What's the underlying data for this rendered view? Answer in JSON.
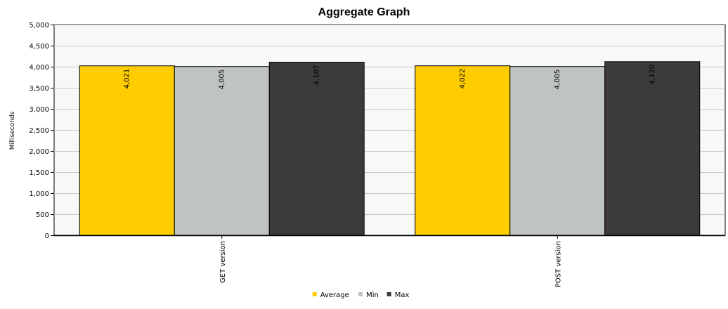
{
  "chart_data": {
    "type": "bar",
    "title": "Aggregate Graph",
    "xlabel": "",
    "ylabel": "Milliseconds",
    "categories": [
      "GET version",
      "POST version"
    ],
    "series": [
      {
        "name": "Average",
        "values": [
          4021,
          4022
        ],
        "labels": [
          "4,021",
          "4,022"
        ],
        "color": "#ffcc00"
      },
      {
        "name": "Min",
        "values": [
          4005,
          4005
        ],
        "labels": [
          "4,005",
          "4,005"
        ],
        "color": "#c0c4c0"
      },
      {
        "name": "Max",
        "values": [
          4107,
          4120
        ],
        "labels": [
          "4,107",
          "4,120"
        ],
        "color": "#3c3a3c"
      }
    ],
    "ylim": [
      0,
      5000
    ],
    "yticks": [
      0,
      500,
      1000,
      1500,
      2000,
      2500,
      3000,
      3500,
      4000,
      4500,
      5000
    ],
    "ytick_labels": [
      "0",
      "500",
      "1,000",
      "1,500",
      "2,000",
      "2,500",
      "3,000",
      "3,500",
      "4,000",
      "4,500",
      "5,000"
    ],
    "grid": true,
    "legend_position": "bottom-center",
    "plot_background": "#f8f8f8"
  }
}
